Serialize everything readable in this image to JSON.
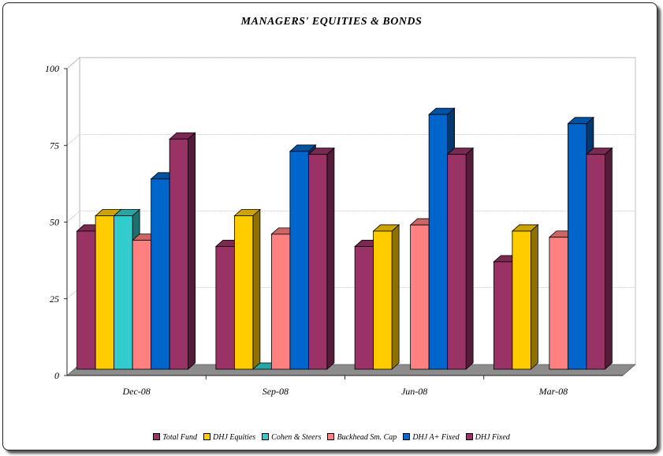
{
  "chart_data": {
    "type": "bar",
    "title": "MANAGERS' EQUITIES & BONDS",
    "xlabel": "",
    "ylabel": "",
    "ylim": [
      0,
      100
    ],
    "yticks": [
      0,
      25,
      50,
      75,
      100
    ],
    "grid": true,
    "legend_position": "bottom",
    "categories": [
      "Dec-08",
      "Sep-08",
      "Jun-08",
      "Mar-08"
    ],
    "series": [
      {
        "name": "Total Fund",
        "color": "#993366",
        "values": [
          45,
          40,
          40,
          35
        ]
      },
      {
        "name": "DHJ Equities",
        "color": "#FFCC00",
        "values": [
          50,
          50,
          45,
          45
        ]
      },
      {
        "name": "Cohen & Steers",
        "color": "#33CCCC",
        "values": [
          50,
          0,
          null,
          null
        ]
      },
      {
        "name": "Buckhead Sm. Cap",
        "color": "#FF8080",
        "values": [
          42,
          44,
          47,
          43
        ]
      },
      {
        "name": "DHJ A+ Fixed",
        "color": "#0066CC",
        "values": [
          62,
          71,
          83,
          80
        ]
      },
      {
        "name": "DHJ Fixed",
        "color": "#993366",
        "values": [
          75,
          70,
          70,
          70
        ]
      }
    ]
  }
}
